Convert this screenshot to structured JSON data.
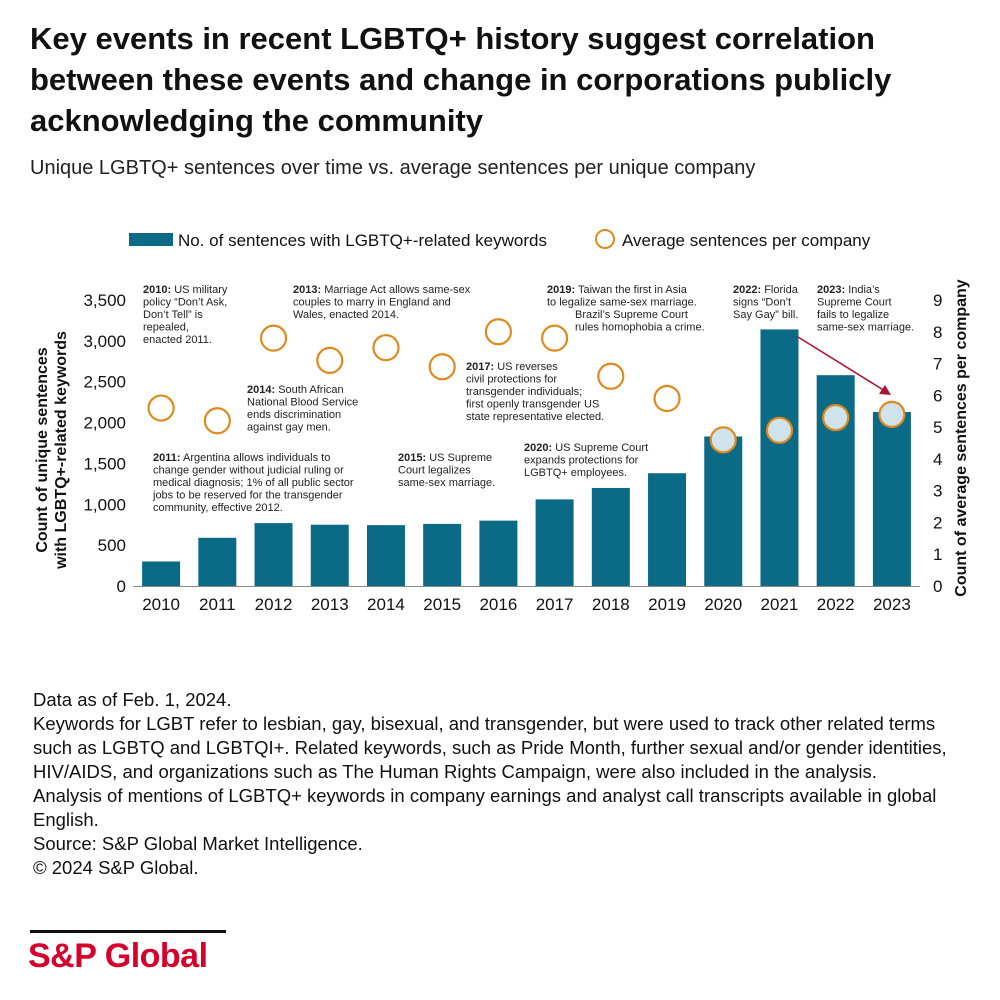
{
  "title": "Key events in recent LGBTQ+ history suggest correlation between these events and change in corporations publicly acknowledging the community",
  "subtitle": "Unique LGBTQ+ sentences over time vs. average sentences per unique company",
  "colors": {
    "bar": "#0b6a86",
    "bar_overlay": "#cfe3ec",
    "circle_outline": "#e08a1e",
    "arrow": "#b0132f",
    "brand": "#d6002a"
  },
  "chart_data": {
    "type": "bar",
    "categories": [
      "2010",
      "2011",
      "2012",
      "2013",
      "2014",
      "2015",
      "2016",
      "2017",
      "2018",
      "2019",
      "2020",
      "2021",
      "2022",
      "2023"
    ],
    "series": [
      {
        "name": "No. of sentences with LGBTQ+-related keywords",
        "type": "bar",
        "axis": "left",
        "values": [
          300,
          590,
          770,
          750,
          745,
          760,
          800,
          1060,
          1200,
          1380,
          1830,
          3140,
          2580,
          2130
        ]
      },
      {
        "name": "Average sentences per company",
        "type": "scatter",
        "axis": "right",
        "values": [
          5.6,
          5.2,
          7.8,
          7.1,
          7.5,
          6.9,
          8.0,
          7.8,
          6.6,
          5.9,
          4.6,
          4.9,
          5.3,
          5.4
        ]
      }
    ],
    "ylabel": "Count of unique sentences with LGBTQ+-related keywords",
    "ylabel_right": "Count of average sentences per company",
    "ylim": [
      0,
      3500
    ],
    "yticks": [
      "0",
      "500",
      "1,000",
      "1,500",
      "2,000",
      "2,500",
      "3,000",
      "3,500"
    ],
    "ylim_right": [
      0,
      9
    ],
    "yticks_right": [
      "0",
      "1",
      "2",
      "3",
      "4",
      "5",
      "6",
      "7",
      "8",
      "9"
    ],
    "legend_position": "top",
    "grid": false,
    "annotations": [
      {
        "year": "2010:",
        "lines": [
          "2010: US military",
          "policy “Don’t Ask,",
          "Don’t Tell” is",
          "repealed,",
          "enacted 2011."
        ]
      },
      {
        "year": "2011:",
        "lines": [
          "2011: Argentina allows individuals to",
          "change gender without judicial ruling or",
          "medical diagnosis; 1% of all public sector",
          "jobs to be reserved for the transgender",
          "community, effective 2012."
        ]
      },
      {
        "year": "2013:",
        "lines": [
          "2013: Marriage Act allows same-sex",
          "couples to marry in England and",
          "Wales, enacted 2014."
        ]
      },
      {
        "year": "2014:",
        "lines": [
          "2014: South African",
          "National Blood Service",
          "ends discrimination",
          "against gay men."
        ]
      },
      {
        "year": "2015:",
        "lines": [
          "2015: US Supreme",
          "Court legalizes",
          "same-sex marriage."
        ]
      },
      {
        "year": "2017:",
        "lines": [
          "2017: US reverses",
          "civil protections for",
          "transgender individuals;",
          "first openly transgender US",
          "state representative elected."
        ]
      },
      {
        "year": "2019:",
        "lines": [
          "2019: Taiwan the first in Asia",
          "to legalize same-sex marriage.",
          "Brazil’s Supreme Court",
          "rules homophobia a crime."
        ]
      },
      {
        "year": "2020:",
        "lines": [
          "2020: US Supreme Court",
          "expands protections for",
          "LGBTQ+ employees."
        ]
      },
      {
        "year": "2022:",
        "lines": [
          "2022: Florida",
          "signs “Don’t",
          "Say Gay” bill."
        ]
      },
      {
        "year": "2023:",
        "lines": [
          "2023: India’s",
          "Supreme Court",
          "fails to legalize",
          "same-sex marriage."
        ]
      }
    ]
  },
  "footnotes": [
    "Data as of Feb. 1, 2024.",
    "Keywords for LGBT refer to lesbian, gay, bisexual,  and transgender, but were used to track other related terms such as LGBTQ and LGBTQI+. Related keywords, such as Pride Month, further sexual and/or gender identities, HIV/AIDS, and organizations such as The Human Rights Campaign, were also included in the analysis.",
    "Analysis of mentions of LGBTQ+ keywords in company earnings and analyst call transcripts available in global English.",
    "Source: S&P Global Market Intelligence.",
    "© 2024 S&P Global."
  ],
  "logo_text": "S&P Global"
}
